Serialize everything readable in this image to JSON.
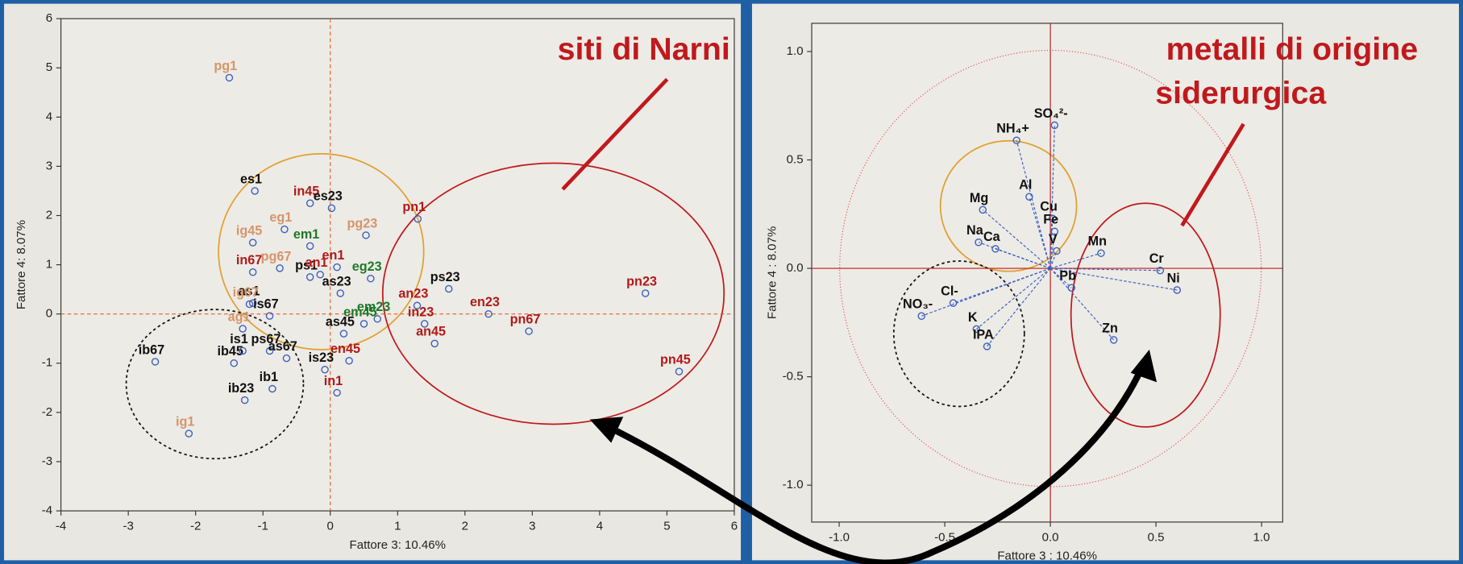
{
  "annotations": [
    "siti di Narni",
    "metalli di origine",
    "siderurgica"
  ],
  "chart_data": [
    {
      "type": "scatter",
      "xlabel": "Fattore 3: 10.46%",
      "ylabel": "Fattore 4:  8.07%",
      "xlim": [
        -4,
        6
      ],
      "ylim": [
        -4,
        6
      ],
      "xticks": [
        -4,
        -3,
        -2,
        -1,
        0,
        1,
        2,
        3,
        4,
        5,
        6
      ],
      "yticks": [
        -4,
        -3,
        -2,
        -1,
        0,
        1,
        2,
        3,
        4,
        5,
        6
      ],
      "labels": [
        "pg1",
        "es1",
        "in45",
        "es23",
        "ig45",
        "eg1",
        "em1",
        "pg23",
        "pn1",
        "in67",
        "pg67",
        "ps1",
        "en1",
        "eg23",
        "as23",
        "an1",
        "as1",
        "ig67",
        "is67",
        "ps23",
        "an23",
        "en23",
        "pn67",
        "pn23",
        "pn45",
        "in23",
        "an45",
        "ib67",
        "ib45",
        "is1",
        "ps67",
        "as67",
        "ib1",
        "ib23",
        "ig1",
        "is23",
        "in1",
        "en45",
        "as45",
        "em45",
        "em23",
        "ag1"
      ],
      "x": [
        -1.5,
        -1.12,
        -0.3,
        0.02,
        -1.15,
        -0.68,
        -0.3,
        0.53,
        1.3,
        -1.15,
        -0.75,
        -0.3,
        0.1,
        0.6,
        0.15,
        -0.15,
        -1.15,
        -1.2,
        -0.9,
        1.76,
        1.29,
        2.35,
        2.95,
        4.68,
        5.18,
        1.4,
        1.55,
        -2.6,
        -1.43,
        -1.3,
        -0.9,
        -0.65,
        -0.86,
        -1.27,
        -2.1,
        -0.08,
        0.1,
        0.28,
        0.2,
        0.5,
        0.7,
        -1.3
      ],
      "y": [
        4.8,
        2.5,
        2.25,
        2.15,
        1.45,
        1.72,
        1.38,
        1.6,
        1.93,
        0.85,
        0.93,
        0.75,
        0.95,
        0.72,
        0.42,
        0.8,
        0.22,
        0.2,
        -0.04,
        0.51,
        0.17,
        0.0,
        -0.35,
        0.42,
        -1.17,
        -0.2,
        -0.6,
        -0.97,
        -1.0,
        -0.75,
        -0.75,
        -0.9,
        -1.52,
        -1.75,
        -2.43,
        -1.13,
        -1.6,
        -0.95,
        -0.4,
        -0.2,
        -0.1,
        -0.3
      ],
      "label_colors": [
        "#d4956b",
        "#111",
        "#b01a1a",
        "#111",
        "#d4956b",
        "#d4956b",
        "#1d7a2a",
        "#d4956b",
        "#b01a1a",
        "#b01a1a",
        "#d4956b",
        "#111",
        "#b01a1a",
        "#1d7a2a",
        "#111",
        "#b01a1a",
        "#111",
        "#d4956b",
        "#111",
        "#111",
        "#b01a1a",
        "#b01a1a",
        "#b01a1a",
        "#b01a1a",
        "#b01a1a",
        "#b01a1a",
        "#b01a1a",
        "#111",
        "#111",
        "#111",
        "#111",
        "#111",
        "#111",
        "#111",
        "#d4956b",
        "#111",
        "#b01a1a",
        "#b01a1a",
        "#111",
        "#1d7a2a",
        "#1d7a2a",
        "#d4956b"
      ],
      "marker_color": "#3a5fc0",
      "zero_line_color": "#e0602a"
    },
    {
      "type": "loadings",
      "xlabel": "Fattore 3 : 10.46%",
      "ylabel": "Fattore 4 : 8.07%",
      "xlim": [
        -1.13,
        1.1
      ],
      "ylim": [
        -1.17,
        1.13
      ],
      "xticks": [
        {
          "value": -1,
          "label": "-1.0"
        },
        {
          "value": -0.5,
          "label": "-0.5"
        },
        {
          "value": 0,
          "label": "0.0"
        },
        {
          "value": 0.5,
          "label": "0.5"
        },
        {
          "value": 1,
          "label": "1.0"
        }
      ],
      "yticks": [
        {
          "value": -1,
          "label": "-1.0"
        },
        {
          "value": -0.5,
          "label": "-0.5"
        },
        {
          "value": 0,
          "label": "0.0"
        },
        {
          "value": 0.5,
          "label": "0.5"
        },
        {
          "value": 1,
          "label": "1.0"
        }
      ],
      "labels": [
        "SO₄²-",
        "NH₄+",
        "Al",
        "Mg",
        "Cu",
        "Fe",
        "V",
        "Na",
        "Ca",
        "Mn",
        "Cr",
        "Ni",
        "Pb",
        "Zn",
        "Cl-",
        "NO₃-",
        "K",
        "IPA"
      ],
      "x": [
        0.02,
        -0.16,
        -0.1,
        -0.32,
        0.01,
        0.02,
        0.03,
        -0.34,
        -0.26,
        0.24,
        0.52,
        0.6,
        0.1,
        0.3,
        -0.46,
        -0.61,
        -0.35,
        -0.3
      ],
      "y": [
        0.66,
        0.59,
        0.33,
        0.27,
        0.23,
        0.17,
        0.08,
        0.12,
        0.09,
        0.07,
        -0.01,
        -0.1,
        -0.09,
        -0.33,
        -0.16,
        -0.22,
        -0.28,
        -0.36
      ],
      "marker_color": "#3a5fc0",
      "zero_line_color": "#c0191c"
    }
  ]
}
